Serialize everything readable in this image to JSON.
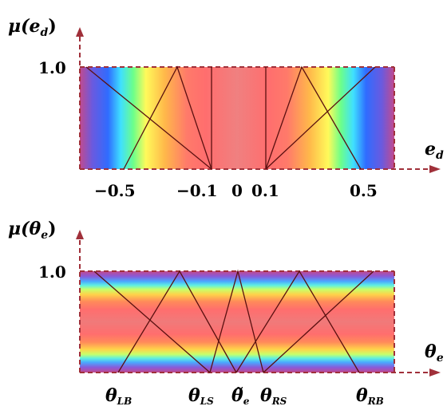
{
  "top_panel": {
    "y_axis_label": "μ(e",
    "y_axis_sub": "d",
    "y_axis_close": ")",
    "x_axis_label": "e",
    "x_axis_sub": "d",
    "one_label": "1.0",
    "ticks": [
      "−0.5",
      "−0.1",
      "0",
      "0.1",
      "0.5"
    ]
  },
  "bottom_panel": {
    "y_axis_label": "μ(θ",
    "y_axis_sub": "e",
    "y_axis_close": ")",
    "x_axis_label": "θ",
    "x_axis_sub": "e",
    "one_label": "1.0",
    "ticks": [
      {
        "main": "θ",
        "sub": "LB"
      },
      {
        "main": "θ",
        "sub": "LS"
      },
      {
        "main": "θ̃",
        "sub": "e"
      },
      {
        "main": "θ",
        "sub": "RS"
      },
      {
        "main": "θ",
        "sub": "RB"
      }
    ]
  },
  "colors": {
    "axis": "#a0303a",
    "member_line": "#5a1010"
  }
}
